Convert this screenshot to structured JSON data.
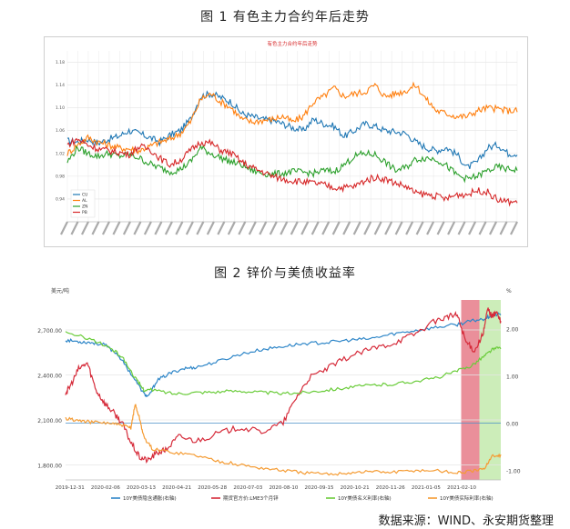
{
  "figure1": {
    "caption": "图 1 有色主力合约年后走势",
    "chart_data": {
      "type": "line",
      "title": "有色主力合约年后走势",
      "ylim": [
        0.9,
        1.2
      ],
      "yticks": [
        "0.94",
        "0.98",
        "1.02",
        "1.06",
        "1.10",
        "1.14",
        "1.18"
      ],
      "grid": true,
      "legend_position": "bottom-left",
      "x_count": 44,
      "series": [
        {
          "name": "CU",
          "color": "#1f77b4",
          "values": [
            1.042,
            1.04,
            1.045,
            1.038,
            1.045,
            1.05,
            1.06,
            1.055,
            1.048,
            1.04,
            1.052,
            1.06,
            1.08,
            1.12,
            1.125,
            1.118,
            1.11,
            1.09,
            1.085,
            1.08,
            1.078,
            1.072,
            1.065,
            1.06,
            1.08,
            1.072,
            1.068,
            1.05,
            1.06,
            1.072,
            1.068,
            1.06,
            1.058,
            1.055,
            1.04,
            1.03,
            1.025,
            1.03,
            1.018,
            0.995,
            1.005,
            1.03,
            1.035,
            1.02
          ]
        },
        {
          "name": "AL",
          "color": "#ff7f0e",
          "values": [
            1.02,
            1.035,
            1.048,
            1.04,
            1.035,
            1.03,
            1.028,
            1.025,
            1.032,
            1.04,
            1.045,
            1.055,
            1.075,
            1.115,
            1.125,
            1.11,
            1.1,
            1.08,
            1.075,
            1.078,
            1.08,
            1.085,
            1.075,
            1.085,
            1.11,
            1.12,
            1.135,
            1.12,
            1.125,
            1.128,
            1.14,
            1.12,
            1.125,
            1.13,
            1.14,
            1.115,
            1.095,
            1.09,
            1.085,
            1.085,
            1.095,
            1.1,
            1.098,
            1.095
          ]
        },
        {
          "name": "ZN",
          "color": "#2ca02c",
          "values": [
            1.005,
            1.03,
            1.02,
            1.015,
            1.02,
            1.015,
            1.018,
            1.012,
            1.002,
            0.995,
            0.988,
            0.992,
            1.005,
            1.03,
            1.02,
            1.012,
            1.005,
            1.0,
            0.99,
            0.985,
            0.983,
            0.985,
            0.988,
            0.987,
            0.985,
            0.99,
            0.988,
            1.0,
            1.015,
            1.02,
            1.018,
            1.005,
            0.99,
            0.995,
            1.01,
            1.012,
            1.01,
            0.998,
            0.982,
            0.975,
            0.98,
            0.99,
            0.996,
            0.992
          ]
        },
        {
          "name": "PB",
          "color": "#d62728",
          "values": [
            1.035,
            1.045,
            1.035,
            1.028,
            1.025,
            1.022,
            1.018,
            1.032,
            1.028,
            1.012,
            1.0,
            1.008,
            1.025,
            1.04,
            1.038,
            1.025,
            1.02,
            1.005,
            0.995,
            0.988,
            0.98,
            0.975,
            0.972,
            0.97,
            0.968,
            0.965,
            0.96,
            0.96,
            0.962,
            0.972,
            0.978,
            0.975,
            0.968,
            0.962,
            0.95,
            0.948,
            0.945,
            0.94,
            0.948,
            0.948,
            0.955,
            0.952,
            0.938,
            0.935
          ]
        }
      ]
    }
  },
  "figure2": {
    "caption": "图 2 锌价与美债收益率",
    "chart_data": {
      "type": "line",
      "left_axis_unit": "美元/吨",
      "right_axis_unit": "%",
      "left_ylim": [
        1700,
        2900
      ],
      "right_ylim": [
        -1.2,
        2.6
      ],
      "left_ticks": [
        "1,800.00",
        "2,100.00",
        "2,400.00",
        "2,700.00"
      ],
      "left_tick_values": [
        1800,
        2100,
        2400,
        2700
      ],
      "right_ticks": [
        "-1.00",
        "0.00",
        "1.00",
        "2.00"
      ],
      "right_tick_values": [
        -1,
        0,
        1,
        2
      ],
      "x_tick_labels": [
        "2019-12-31",
        "2020-02-06",
        "2020-03-13",
        "2020-04-21",
        "2020-05-28",
        "2020-07-03",
        "2020-08-10",
        "2020-09-15",
        "2020-10-21",
        "2020-11-26",
        "2021-01-05",
        "2021-02-10"
      ],
      "shaded_regions": [
        {
          "from": 0.909,
          "to": 0.951,
          "color": "#e8838f"
        },
        {
          "from": 0.951,
          "to": 1.0,
          "color": "#bfe8a8"
        }
      ],
      "series": [
        {
          "name": "10Y美债隐含通胀(右轴)",
          "axis": "right",
          "color": "#2e86c8",
          "x": [
            0,
            0.03,
            0.06,
            0.09,
            0.12,
            0.15,
            0.18,
            0.19,
            0.21,
            0.24,
            0.27,
            0.3,
            0.35,
            0.4,
            0.45,
            0.5,
            0.55,
            0.6,
            0.65,
            0.7,
            0.75,
            0.8,
            0.85,
            0.9,
            0.93,
            0.96,
            0.98,
            1.0
          ],
          "values": [
            1.75,
            1.72,
            1.7,
            1.65,
            1.45,
            1.05,
            0.62,
            0.55,
            0.9,
            1.05,
            1.15,
            1.18,
            1.3,
            1.45,
            1.55,
            1.62,
            1.68,
            1.7,
            1.75,
            1.78,
            1.88,
            1.95,
            2.02,
            2.08,
            2.15,
            2.2,
            2.28,
            2.3
          ]
        },
        {
          "name": "期货官方价:LME3个月锌",
          "axis": "left",
          "color": "#d62b3a",
          "x": [
            0,
            0.01,
            0.03,
            0.05,
            0.07,
            0.09,
            0.11,
            0.13,
            0.15,
            0.17,
            0.19,
            0.21,
            0.23,
            0.26,
            0.3,
            0.35,
            0.4,
            0.45,
            0.5,
            0.53,
            0.56,
            0.6,
            0.65,
            0.7,
            0.75,
            0.8,
            0.85,
            0.88,
            0.9,
            0.92,
            0.94,
            0.96,
            0.97,
            0.98,
            0.99,
            1.0
          ],
          "values": [
            2280,
            2320,
            2440,
            2480,
            2300,
            2210,
            2150,
            2080,
            1950,
            1850,
            1830,
            1880,
            1900,
            1990,
            1960,
            2010,
            2050,
            2020,
            2080,
            2250,
            2380,
            2440,
            2520,
            2570,
            2610,
            2670,
            2760,
            2790,
            2800,
            2620,
            2560,
            2680,
            2840,
            2790,
            2820,
            2750
          ]
        },
        {
          "name": "10Y美债名义利率(右轴)",
          "axis": "right",
          "color": "#6acc3a",
          "x": [
            0,
            0.05,
            0.1,
            0.13,
            0.16,
            0.18,
            0.2,
            0.25,
            0.3,
            0.35,
            0.4,
            0.45,
            0.5,
            0.55,
            0.6,
            0.65,
            0.7,
            0.75,
            0.8,
            0.85,
            0.9,
            0.93,
            0.96,
            0.98,
            1.0
          ],
          "values": [
            1.9,
            1.8,
            1.6,
            1.4,
            0.95,
            0.7,
            0.7,
            0.62,
            0.65,
            0.66,
            0.68,
            0.65,
            0.62,
            0.65,
            0.7,
            0.75,
            0.8,
            0.82,
            0.88,
            0.95,
            1.1,
            1.2,
            1.4,
            1.55,
            1.6
          ]
        },
        {
          "name": "10Y美债实际利率(右轴)",
          "axis": "right",
          "color": "#f59b32",
          "x": [
            0,
            0.03,
            0.06,
            0.1,
            0.13,
            0.15,
            0.16,
            0.17,
            0.18,
            0.2,
            0.25,
            0.3,
            0.35,
            0.4,
            0.45,
            0.5,
            0.55,
            0.6,
            0.65,
            0.7,
            0.75,
            0.8,
            0.85,
            0.9,
            0.93,
            0.96,
            0.98,
            1.0
          ],
          "values": [
            0.1,
            0.05,
            0.02,
            0.0,
            -0.05,
            -0.1,
            0.4,
            0.1,
            -0.3,
            -0.55,
            -0.62,
            -0.68,
            -0.8,
            -0.88,
            -0.95,
            -1.0,
            -1.05,
            -1.08,
            -1.05,
            -1.02,
            -1.04,
            -1.0,
            -1.0,
            -1.05,
            -1.02,
            -0.98,
            -0.7,
            -0.68
          ]
        }
      ]
    }
  },
  "source_text": "数据来源：WIND、永安期货整理"
}
